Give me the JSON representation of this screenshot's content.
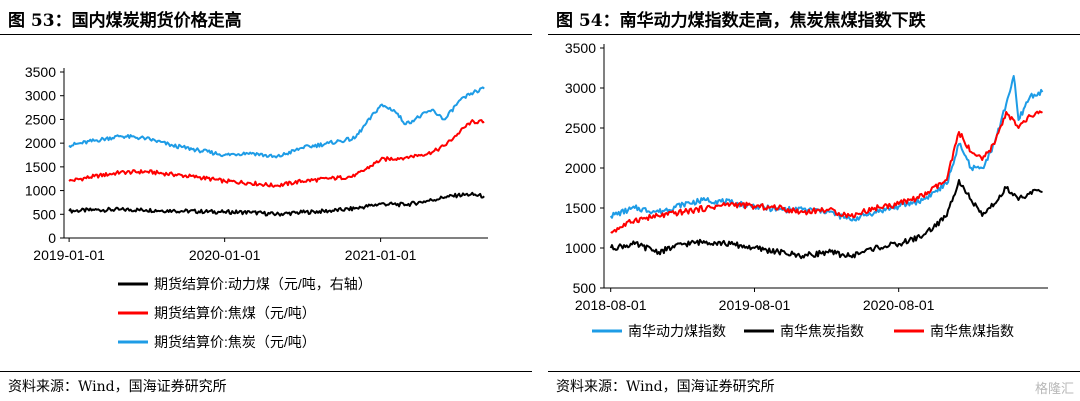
{
  "left": {
    "title": "图 53：国内煤炭期货价格走高",
    "source": "资料来源：Wind，国海证券研究所"
  },
  "right": {
    "title": "图 54：南华动力煤指数走高，焦炭焦煤指数下跌",
    "source": "资料来源：Wind，国海证券研究所"
  },
  "watermark": "格隆汇",
  "chart_data": [
    {
      "type": "line",
      "title": "图 53：国内煤炭期货价格走高",
      "x_ticks": [
        "2019-01-01",
        "2020-01-01",
        "2021-01-01"
      ],
      "ylim": [
        0,
        3500
      ],
      "y_ticks": [
        0,
        500,
        1000,
        1500,
        2000,
        2500,
        3000,
        3500
      ],
      "legend_position": "bottom",
      "grid": false,
      "series": [
        {
          "name": "期货结算价:动力煤（元/吨，右轴）",
          "color": "#000000",
          "points": [
            [
              "2019-01-01",
              570
            ],
            [
              "2019-03-01",
              590
            ],
            [
              "2019-05-01",
              600
            ],
            [
              "2019-07-01",
              590
            ],
            [
              "2019-09-01",
              575
            ],
            [
              "2019-11-01",
              560
            ],
            [
              "2020-01-01",
              550
            ],
            [
              "2020-03-01",
              540
            ],
            [
              "2020-05-01",
              500
            ],
            [
              "2020-07-01",
              540
            ],
            [
              "2020-09-01",
              570
            ],
            [
              "2020-11-01",
              620
            ],
            [
              "2021-01-01",
              720
            ],
            [
              "2021-03-01",
              700
            ],
            [
              "2021-05-01",
              800
            ],
            [
              "2021-06-01",
              860
            ],
            [
              "2021-07-01",
              900
            ],
            [
              "2021-08-01",
              920
            ],
            [
              "2021-09-01",
              880
            ]
          ]
        },
        {
          "name": "期货结算价:焦煤（元/吨）",
          "color": "#ff0000",
          "points": [
            [
              "2019-01-01",
              1200
            ],
            [
              "2019-03-01",
              1300
            ],
            [
              "2019-05-01",
              1380
            ],
            [
              "2019-07-01",
              1400
            ],
            [
              "2019-09-01",
              1340
            ],
            [
              "2019-11-01",
              1280
            ],
            [
              "2020-01-01",
              1200
            ],
            [
              "2020-03-01",
              1160
            ],
            [
              "2020-05-01",
              1100
            ],
            [
              "2020-07-01",
              1200
            ],
            [
              "2020-09-01",
              1250
            ],
            [
              "2020-11-01",
              1300
            ],
            [
              "2021-01-01",
              1650
            ],
            [
              "2021-03-01",
              1700
            ],
            [
              "2021-05-01",
              1800
            ],
            [
              "2021-06-01",
              1950
            ],
            [
              "2021-07-01",
              2200
            ],
            [
              "2021-08-01",
              2450
            ],
            [
              "2021-09-01",
              2450
            ]
          ]
        },
        {
          "name": "期货结算价:焦炭（元/吨）",
          "color": "#1e9ce6",
          "points": [
            [
              "2019-01-01",
              1950
            ],
            [
              "2019-03-01",
              2050
            ],
            [
              "2019-05-01",
              2150
            ],
            [
              "2019-07-01",
              2100
            ],
            [
              "2019-09-01",
              1950
            ],
            [
              "2019-11-01",
              1850
            ],
            [
              "2020-01-01",
              1750
            ],
            [
              "2020-03-01",
              1800
            ],
            [
              "2020-05-01",
              1700
            ],
            [
              "2020-07-01",
              1900
            ],
            [
              "2020-09-01",
              2000
            ],
            [
              "2020-11-01",
              2100
            ],
            [
              "2021-01-01",
              2800
            ],
            [
              "2021-02-01",
              2700
            ],
            [
              "2021-03-01",
              2400
            ],
            [
              "2021-05-01",
              2700
            ],
            [
              "2021-06-01",
              2500
            ],
            [
              "2021-07-01",
              2850
            ],
            [
              "2021-08-01",
              3050
            ],
            [
              "2021-09-01",
              3150
            ]
          ]
        }
      ]
    },
    {
      "type": "line",
      "title": "图 54：南华动力煤指数走高，焦炭焦煤指数下跌",
      "x_ticks": [
        "2018-08-01",
        "2019-08-01",
        "2020-08-01"
      ],
      "ylim": [
        500,
        3500
      ],
      "y_ticks": [
        500,
        1000,
        1500,
        2000,
        2500,
        3000,
        3500
      ],
      "legend_position": "bottom",
      "grid": false,
      "series": [
        {
          "name": "南华动力煤指数",
          "color": "#1e9ce6",
          "points": [
            [
              "2018-08-01",
              1400
            ],
            [
              "2018-10-01",
              1500
            ],
            [
              "2018-12-01",
              1450
            ],
            [
              "2019-02-01",
              1550
            ],
            [
              "2019-04-01",
              1600
            ],
            [
              "2019-06-01",
              1570
            ],
            [
              "2019-08-01",
              1520
            ],
            [
              "2019-10-01",
              1480
            ],
            [
              "2019-12-01",
              1480
            ],
            [
              "2020-02-01",
              1460
            ],
            [
              "2020-04-01",
              1350
            ],
            [
              "2020-06-01",
              1450
            ],
            [
              "2020-08-01",
              1520
            ],
            [
              "2020-10-01",
              1600
            ],
            [
              "2020-12-01",
              1800
            ],
            [
              "2021-01-01",
              2300
            ],
            [
              "2021-02-01",
              2000
            ],
            [
              "2021-03-01",
              2000
            ],
            [
              "2021-04-01",
              2300
            ],
            [
              "2021-05-01",
              2800
            ],
            [
              "2021-05-20",
              3150
            ],
            [
              "2021-06-01",
              2600
            ],
            [
              "2021-07-01",
              2900
            ],
            [
              "2021-08-01",
              2950
            ]
          ]
        },
        {
          "name": "南华焦炭指数",
          "color": "#000000",
          "points": [
            [
              "2018-08-01",
              1000
            ],
            [
              "2018-10-01",
              1050
            ],
            [
              "2018-12-01",
              950
            ],
            [
              "2019-02-01",
              1050
            ],
            [
              "2019-04-01",
              1080
            ],
            [
              "2019-06-01",
              1050
            ],
            [
              "2019-08-01",
              1000
            ],
            [
              "2019-10-01",
              950
            ],
            [
              "2019-12-01",
              900
            ],
            [
              "2020-02-01",
              950
            ],
            [
              "2020-04-01",
              900
            ],
            [
              "2020-06-01",
              1000
            ],
            [
              "2020-08-01",
              1050
            ],
            [
              "2020-10-01",
              1150
            ],
            [
              "2020-12-01",
              1400
            ],
            [
              "2021-01-01",
              1850
            ],
            [
              "2021-02-01",
              1600
            ],
            [
              "2021-03-01",
              1400
            ],
            [
              "2021-04-01",
              1550
            ],
            [
              "2021-05-01",
              1750
            ],
            [
              "2021-06-01",
              1600
            ],
            [
              "2021-07-01",
              1700
            ],
            [
              "2021-08-01",
              1700
            ]
          ]
        },
        {
          "name": "南华焦煤指数",
          "color": "#ff0000",
          "points": [
            [
              "2018-08-01",
              1200
            ],
            [
              "2018-10-01",
              1350
            ],
            [
              "2018-12-01",
              1400
            ],
            [
              "2019-02-01",
              1450
            ],
            [
              "2019-04-01",
              1500
            ],
            [
              "2019-06-01",
              1550
            ],
            [
              "2019-08-01",
              1520
            ],
            [
              "2019-10-01",
              1500
            ],
            [
              "2019-12-01",
              1450
            ],
            [
              "2020-02-01",
              1480
            ],
            [
              "2020-04-01",
              1400
            ],
            [
              "2020-06-01",
              1500
            ],
            [
              "2020-08-01",
              1550
            ],
            [
              "2020-10-01",
              1650
            ],
            [
              "2020-12-01",
              1850
            ],
            [
              "2021-01-01",
              2450
            ],
            [
              "2021-02-01",
              2200
            ],
            [
              "2021-03-01",
              2100
            ],
            [
              "2021-04-01",
              2300
            ],
            [
              "2021-05-01",
              2700
            ],
            [
              "2021-06-01",
              2500
            ],
            [
              "2021-07-01",
              2650
            ],
            [
              "2021-08-01",
              2700
            ]
          ]
        }
      ]
    }
  ]
}
